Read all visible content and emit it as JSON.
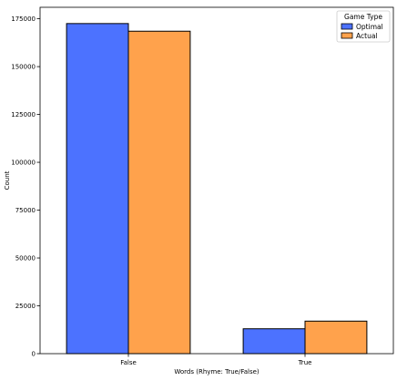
{
  "chart_data": {
    "type": "bar",
    "categories": [
      "False",
      "True"
    ],
    "series": [
      {
        "name": "Optimal",
        "values": [
          172500,
          13000
        ],
        "color": "#4c72ff"
      },
      {
        "name": "Actual",
        "values": [
          168500,
          17000
        ],
        "color": "#ffa24c"
      }
    ],
    "xlabel": "Words (Rhyme: True/False)",
    "ylabel": "Count",
    "ylim": [
      0,
      181000
    ],
    "yticks": [
      0,
      25000,
      50000,
      75000,
      100000,
      125000,
      150000,
      175000
    ],
    "legend": {
      "title": "Game Type",
      "position": "top-right"
    },
    "grid": false
  }
}
